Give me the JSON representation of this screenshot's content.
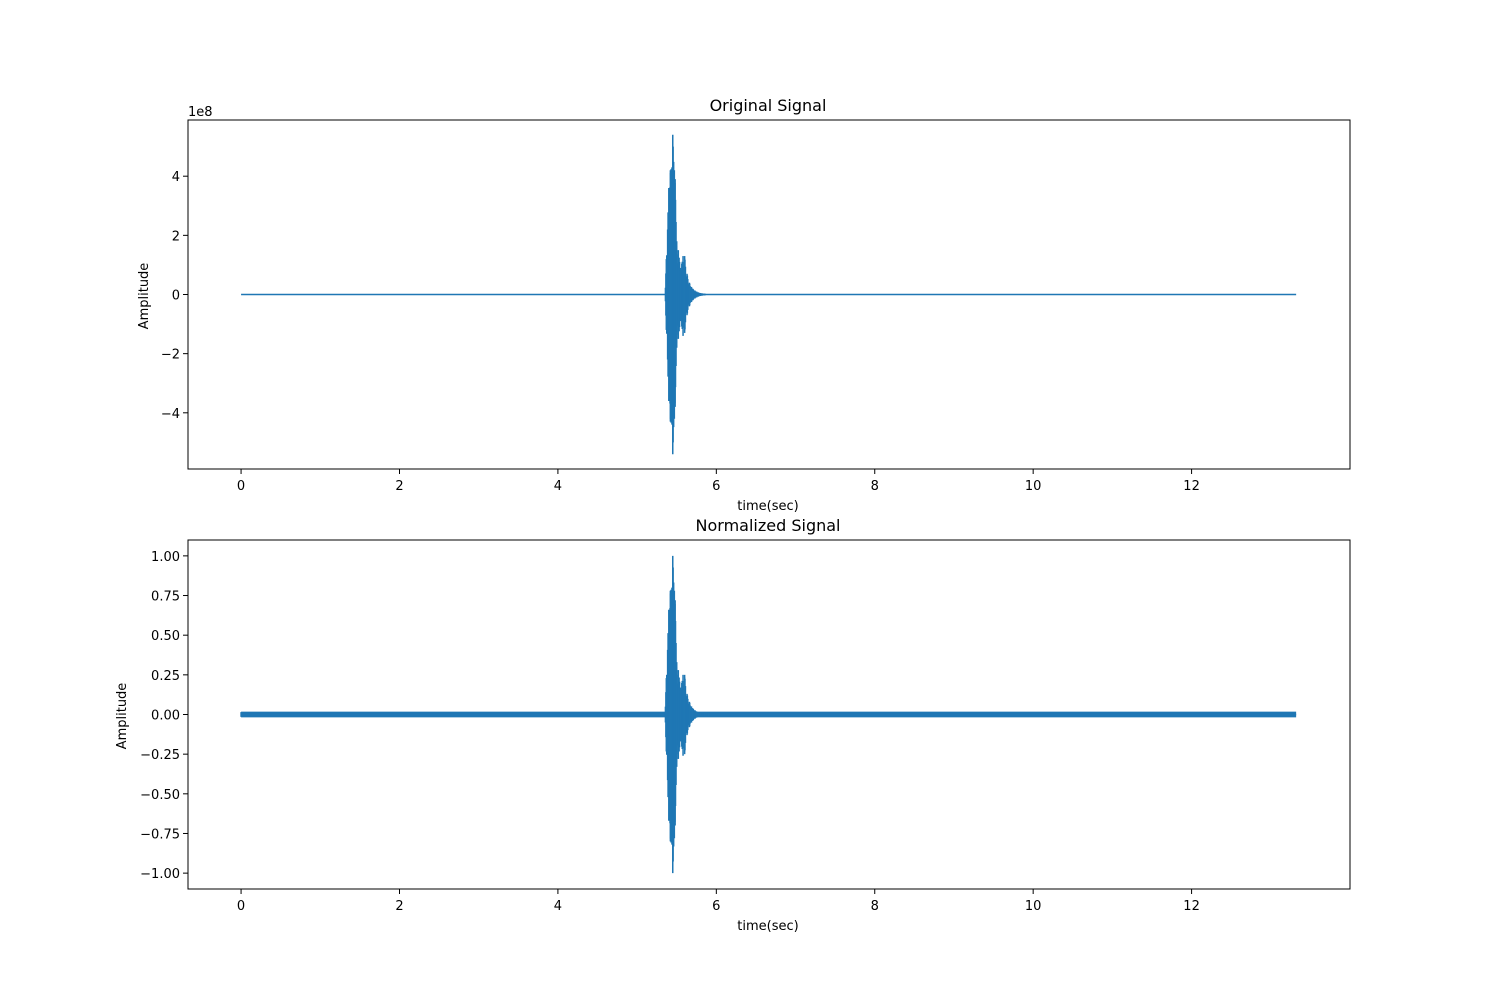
{
  "chart_data": [
    {
      "type": "line",
      "title": "Original Signal",
      "xlabel": "time(sec)",
      "ylabel": "Amplitude",
      "offset_text": "1e8",
      "y_multiplier": 100000000,
      "xlim": [
        -0.67,
        14.0
      ],
      "ylim": [
        -5.9,
        5.9
      ],
      "x_ticks": [
        0,
        2,
        4,
        6,
        8,
        10,
        12
      ],
      "x_tick_labels": [
        "0",
        "2",
        "4",
        "6",
        "8",
        "10",
        "12"
      ],
      "y_ticks": [
        -4,
        -2,
        0,
        2,
        4
      ],
      "y_tick_labels": [
        "−4",
        "−2",
        "0",
        "2",
        "4"
      ],
      "grid": false,
      "line_color": "#1f77b4",
      "series": [
        {
          "x": [
            0,
            5.35,
            5.4,
            5.42,
            5.44,
            5.45,
            5.47,
            5.48,
            5.5,
            5.52,
            5.55,
            5.58,
            5.6,
            5.63,
            5.66,
            5.7,
            5.75,
            5.8,
            5.85,
            5.9,
            13.32
          ],
          "y_max": [
            0,
            0,
            3.6,
            4.2,
            4.3,
            5.4,
            4.2,
            3.9,
            1.8,
            1.5,
            0.9,
            1.3,
            1.3,
            0.7,
            0.4,
            0.2,
            0.1,
            0.05,
            0.03,
            0,
            0
          ],
          "y_min": [
            0,
            0,
            -3.6,
            -4.3,
            -4.4,
            -5.4,
            -4.2,
            -3.8,
            -1.8,
            -1.5,
            -0.9,
            -1.4,
            -1.3,
            -0.7,
            -0.4,
            -0.2,
            -0.1,
            -0.05,
            -0.03,
            0,
            0
          ]
        }
      ]
    },
    {
      "type": "line",
      "title": "Normalized Signal",
      "xlabel": "time(sec)",
      "ylabel": "Amplitude",
      "xlim": [
        -0.67,
        14.0
      ],
      "ylim": [
        -1.1,
        1.1
      ],
      "x_ticks": [
        0,
        2,
        4,
        6,
        8,
        10,
        12
      ],
      "x_tick_labels": [
        "0",
        "2",
        "4",
        "6",
        "8",
        "10",
        "12"
      ],
      "y_ticks": [
        -1.0,
        -0.75,
        -0.5,
        -0.25,
        0,
        0.25,
        0.5,
        0.75,
        1.0
      ],
      "y_tick_labels": [
        "−1.00",
        "−0.75",
        "−0.50",
        "−0.25",
        "0.00",
        "0.25",
        "0.50",
        "0.75",
        "1.00"
      ],
      "grid": false,
      "line_color": "#1f77b4",
      "noise_amplitude": 0.018,
      "series": [
        {
          "x": [
            0,
            5.35,
            5.4,
            5.42,
            5.44,
            5.45,
            5.47,
            5.48,
            5.5,
            5.52,
            5.55,
            5.58,
            5.6,
            5.63,
            5.66,
            5.7,
            5.75,
            5.8,
            5.85,
            5.9,
            13.32
          ],
          "y_max": [
            0.015,
            0.015,
            0.66,
            0.78,
            0.8,
            1.0,
            0.78,
            0.72,
            0.33,
            0.28,
            0.17,
            0.25,
            0.25,
            0.13,
            0.08,
            0.04,
            0.02,
            0.015,
            0.015,
            0.015,
            0.015
          ],
          "y_min": [
            -0.015,
            -0.015,
            -0.67,
            -0.8,
            -0.82,
            -1.0,
            -0.78,
            -0.7,
            -0.33,
            -0.28,
            -0.17,
            -0.26,
            -0.25,
            -0.13,
            -0.08,
            -0.04,
            -0.02,
            -0.015,
            -0.015,
            -0.015,
            -0.015
          ]
        }
      ]
    }
  ]
}
